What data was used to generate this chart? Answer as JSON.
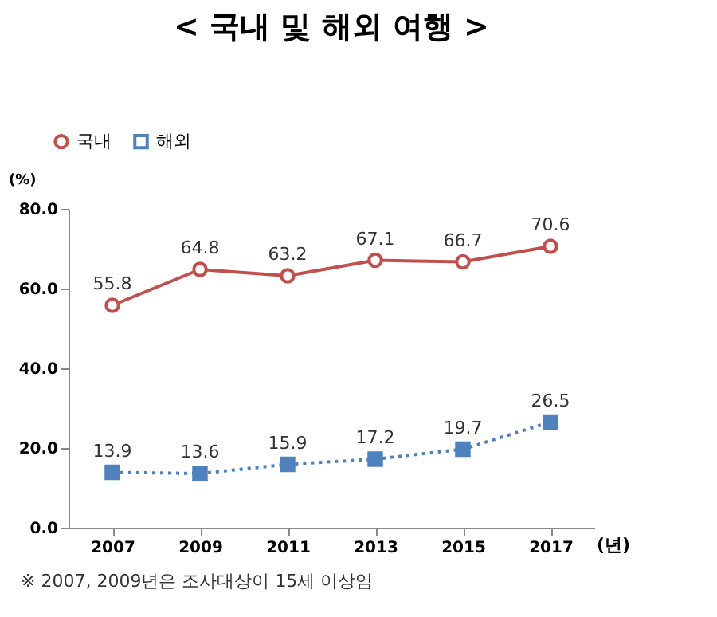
{
  "chart_data": {
    "type": "line",
    "title": "< 국내 및 해외 여행 >",
    "categories": [
      "2007",
      "2009",
      "2011",
      "2013",
      "2015",
      "2017"
    ],
    "series": [
      {
        "name": "국내",
        "color": "#c0504d",
        "values": [
          55.8,
          64.8,
          63.2,
          67.1,
          66.7,
          70.6
        ],
        "marker": "circle",
        "line_style": "solid"
      },
      {
        "name": "해외",
        "color": "#4f81bd",
        "values": [
          13.9,
          13.6,
          15.9,
          17.2,
          19.7,
          26.5
        ],
        "marker": "square",
        "line_style": "dotted"
      }
    ],
    "ylabel": "(%)",
    "xlabel": "(년)",
    "ylim": [
      0,
      80
    ],
    "yticks": [
      {
        "value": 0,
        "label": "0.0"
      },
      {
        "value": 20,
        "label": "20.0"
      },
      {
        "value": 40,
        "label": "40.0"
      },
      {
        "value": 60,
        "label": "60.0"
      },
      {
        "value": 80,
        "label": "80.0"
      }
    ],
    "data_labels": true,
    "legend": "top left",
    "annotations": [
      "※ 2007, 2009년은 조사대상이 15세 이상임"
    ]
  }
}
